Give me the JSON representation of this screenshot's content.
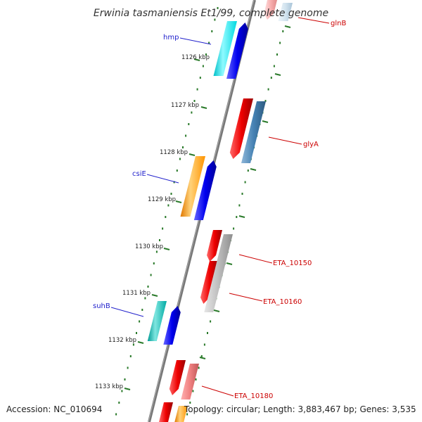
{
  "title": "Erwinia tasmaniensis Et1/99, complete genome",
  "footer": {
    "accession": "Accession: NC_010694",
    "topology": "Topology: circular; Length: 3,883,467 bp; Genes: 3,535"
  },
  "kbp_labels": [
    "1126 kbp",
    "1127 kbp",
    "1128 kbp",
    "1129 kbp",
    "1130 kbp",
    "1131 kbp",
    "1132 kbp",
    "1133 kbp"
  ],
  "gene_labels_left": [
    "hmp",
    "csiE",
    "suhB"
  ],
  "gene_labels_right": [
    "glnB",
    "glyA",
    "ETA_10150",
    "ETA_10160",
    "ETA_10180"
  ],
  "colors": {
    "backbone": "#777777",
    "ticks": "#2a7a2a",
    "blue": "#0000ee",
    "cyan": "#00e5ee",
    "teal": "#00b7b0",
    "orange": "#ff9900",
    "red": "#ee0000",
    "steelblue": "#4682b4",
    "silver": "#bdbdbd",
    "salmon": "#f08080",
    "lightblue": "#c6dbe8"
  }
}
